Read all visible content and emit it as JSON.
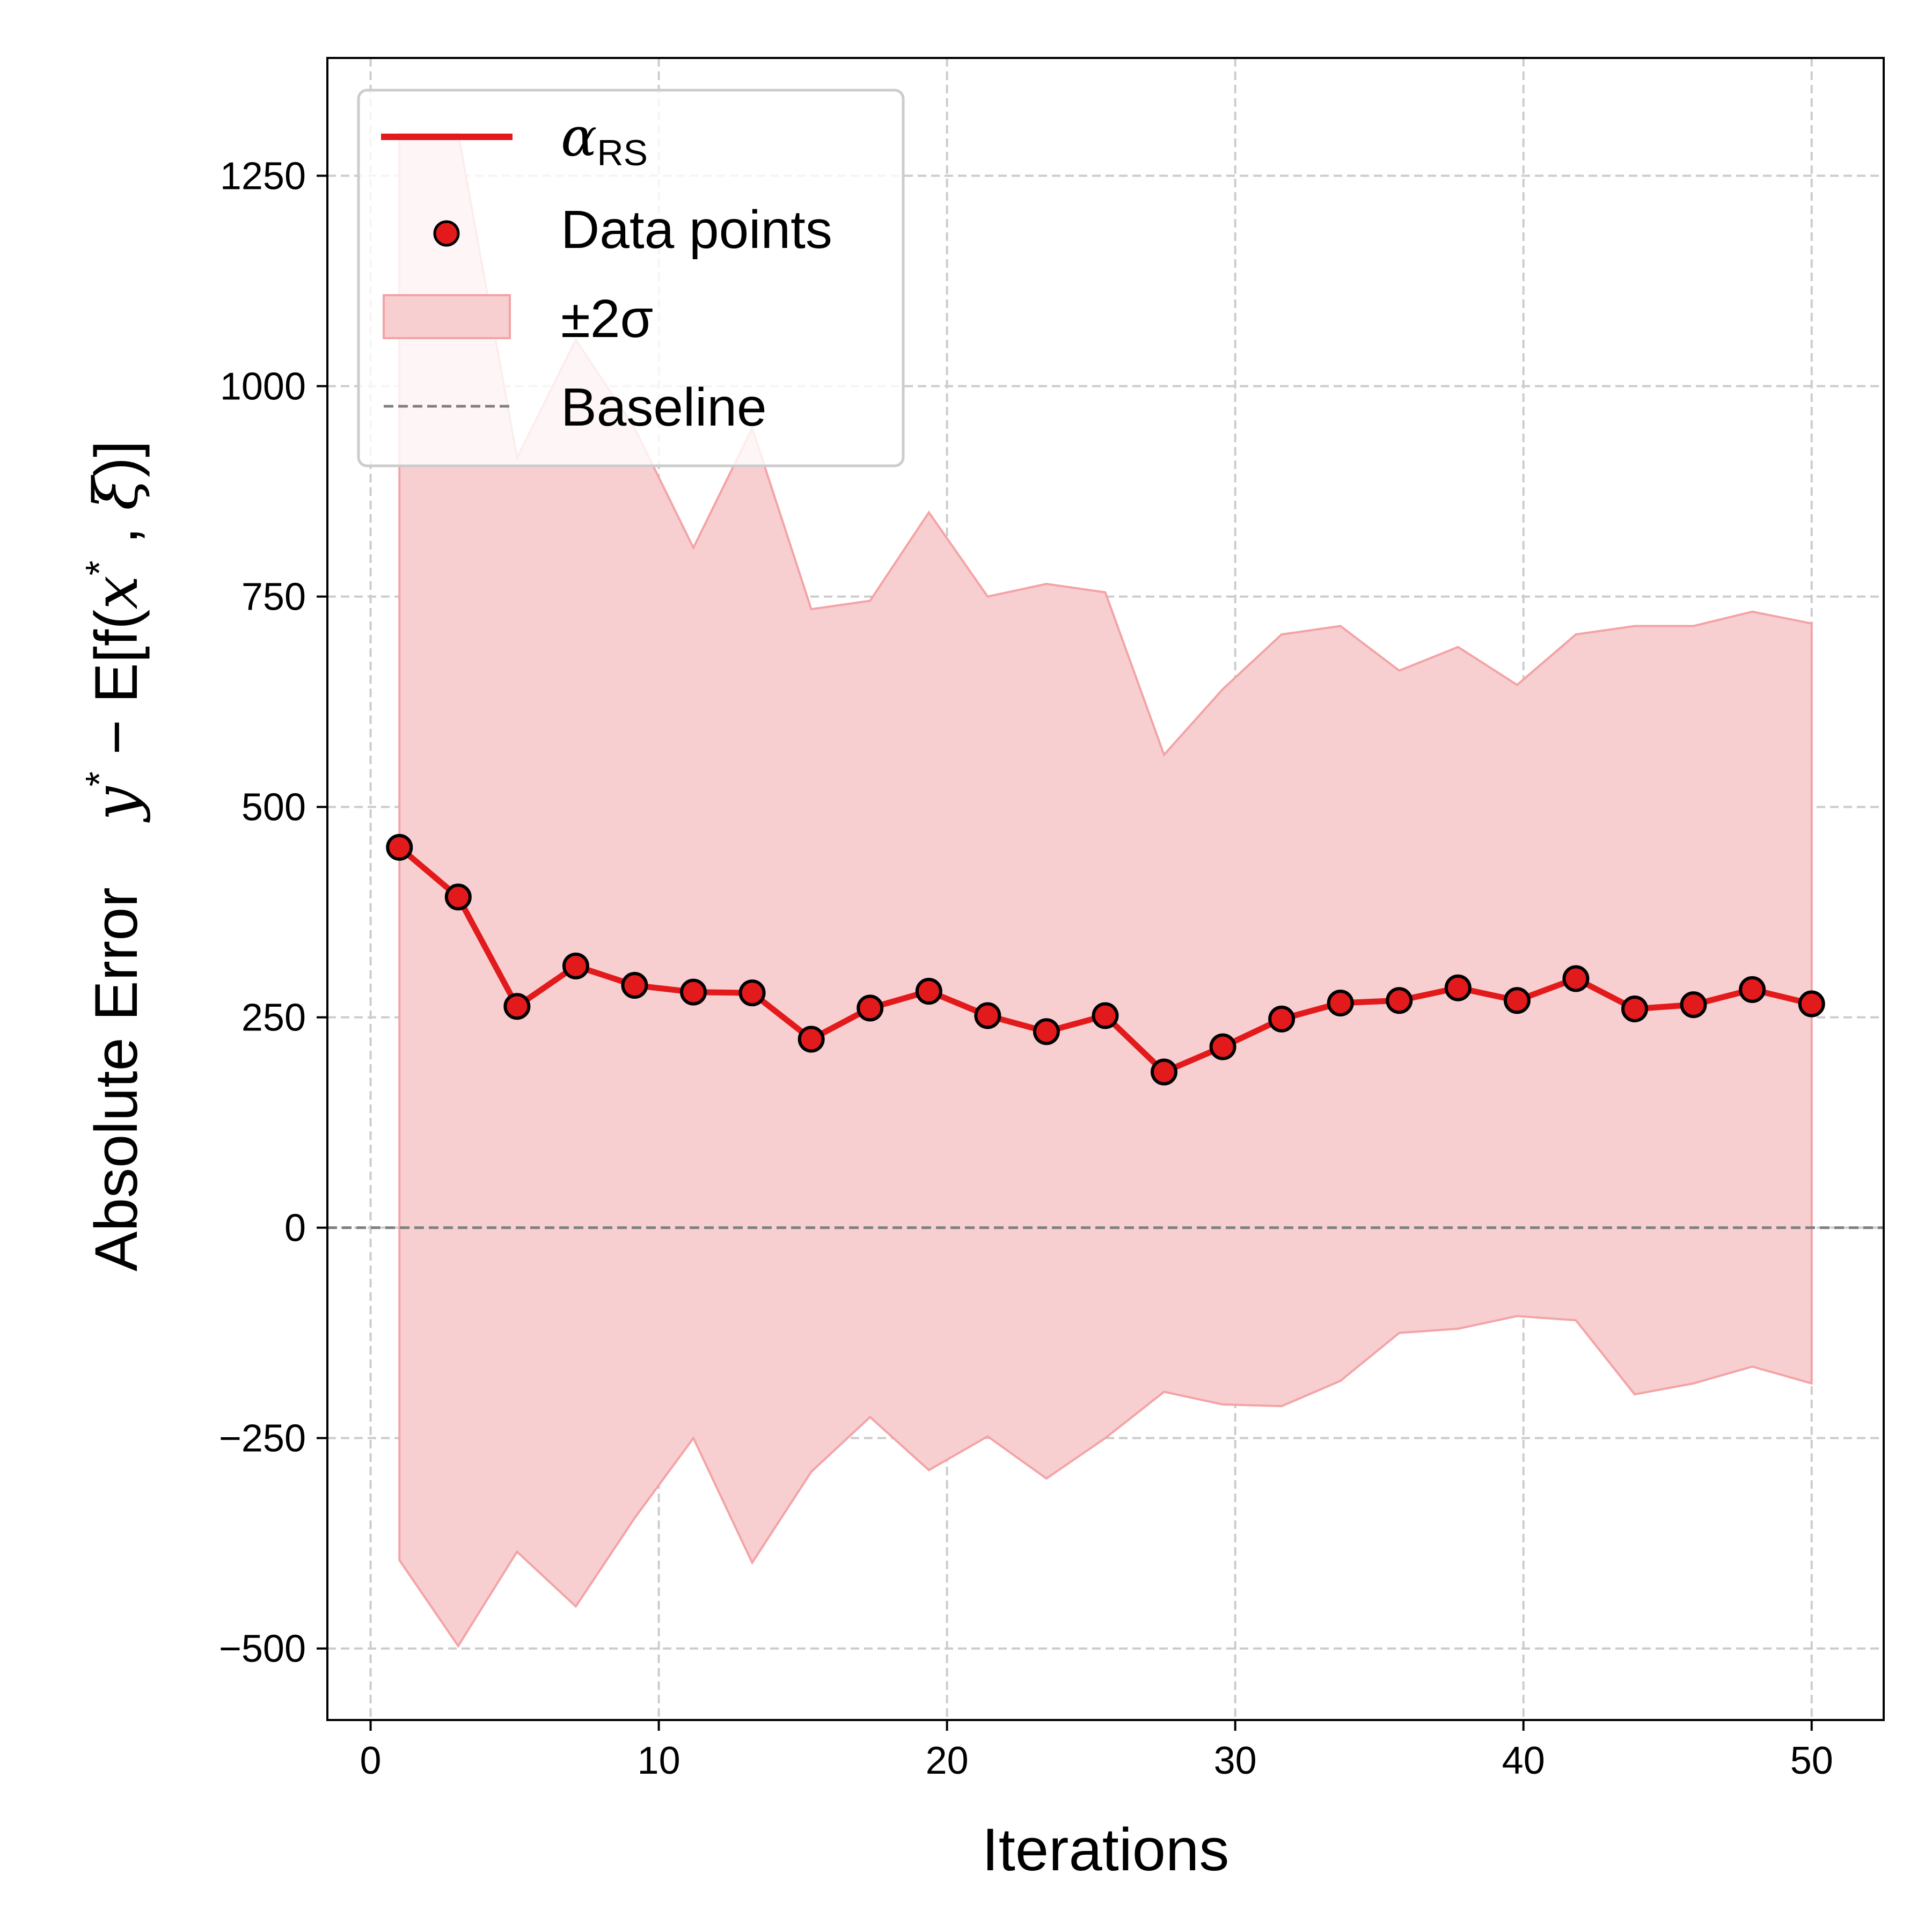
{
  "chart_data": {
    "type": "line",
    "xlabel": "Iterations",
    "ylabel": "Absolute Error    y* − E[f(x*, ξ)]",
    "ylabel_parts": {
      "prefix": "Absolute Error",
      "formula": "y",
      "star": "*",
      "mid": " − E[f(",
      "x": "x",
      "star2": "*",
      "comma": " , ",
      "xi": "ξ",
      "suffix": ")]"
    },
    "xlim": [
      -1.5,
      52.5
    ],
    "ylim": [
      -585,
      1390
    ],
    "xticks": [
      0,
      10,
      20,
      30,
      40,
      50
    ],
    "yticks": [
      -500,
      -250,
      0,
      250,
      500,
      750,
      1000,
      1250
    ],
    "xtick_labels": [
      "0",
      "10",
      "20",
      "30",
      "40",
      "50"
    ],
    "ytick_labels": [
      "−500",
      "−250",
      "0",
      "250",
      "500",
      "750",
      "1000",
      "1250"
    ],
    "grid": true,
    "legend_position": "top-left",
    "legend": {
      "line_label_main": "α",
      "line_label_sub": "RS",
      "points_label": "Data points",
      "band_label": "±2σ",
      "baseline_label": "Baseline"
    },
    "colors": {
      "line": "#e31a1c",
      "band": "#f7cfd0",
      "band_edge": "#f4a3a5",
      "baseline": "#808080",
      "grid": "#cccccc"
    },
    "x": [
      1.0,
      3.04,
      5.08,
      7.12,
      9.16,
      11.2,
      13.24,
      15.29,
      17.33,
      19.37,
      21.41,
      23.45,
      25.49,
      27.53,
      29.57,
      31.61,
      33.65,
      35.69,
      37.73,
      39.78,
      41.82,
      43.86,
      45.9,
      47.94,
      50.0
    ],
    "series": [
      {
        "name": "α_RS",
        "values": [
          452,
          393,
          263,
          311,
          288,
          280,
          279,
          224,
          261,
          281,
          252,
          233,
          252,
          185,
          215,
          248,
          267,
          270,
          285,
          270,
          296,
          260,
          265,
          283,
          266
        ]
      }
    ],
    "band": {
      "name": "±2σ",
      "upper": [
        1300,
        1300,
        915,
        1055,
        950,
        808,
        950,
        735,
        745,
        850,
        750,
        765,
        755,
        562,
        640,
        705,
        715,
        662,
        690,
        645,
        705,
        715,
        715,
        732,
        718
      ],
      "lower": [
        -395,
        -497,
        -385,
        -450,
        -345,
        -250,
        -398,
        -290,
        -225,
        -288,
        -248,
        -298,
        -250,
        -195,
        -210,
        -212,
        -182,
        -125,
        -120,
        -105,
        -110,
        -198,
        -185,
        -165,
        -185
      ]
    },
    "baseline": 0
  }
}
